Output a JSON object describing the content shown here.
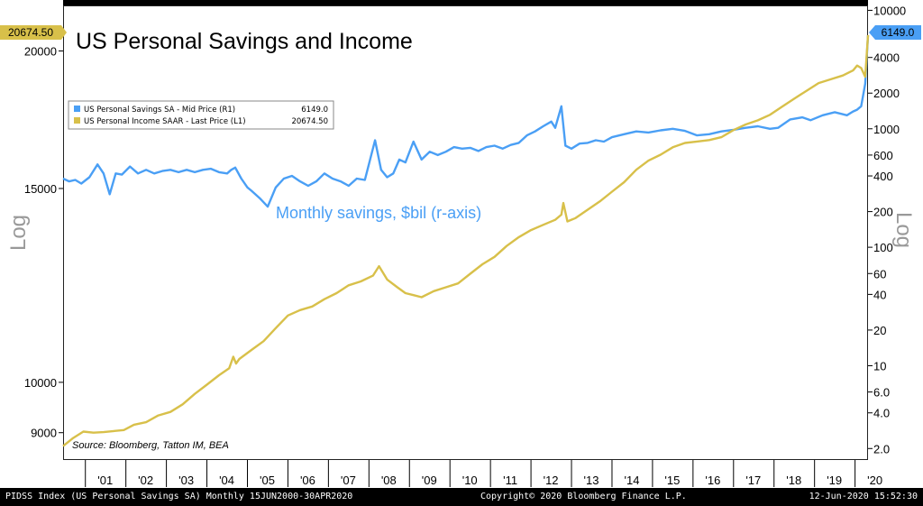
{
  "chart_data": {
    "type": "line",
    "title": "US Personal Savings and Income",
    "annotation": "Monthly savings, $bil (r-axis)",
    "source": "Source: Bloomberg, Tatton IM, BEA",
    "left_axis": {
      "label": "Log",
      "scale": "log",
      "range": [
        8500,
        22000
      ],
      "ticks": [
        "20000",
        "15000",
        "10000",
        "9000"
      ],
      "tick_values": [
        20000,
        15000,
        10000,
        9000
      ]
    },
    "right_axis": {
      "label": "Log",
      "scale": "log",
      "range": [
        1.6,
        11000
      ],
      "ticks": [
        "10000",
        "4000",
        "2000",
        "1000",
        "600",
        "400",
        "200",
        "100",
        "60",
        "40",
        "20",
        "10",
        "6.0",
        "4.0",
        "2.0"
      ],
      "tick_values": [
        10000,
        4000,
        2000,
        1000,
        600,
        400,
        200,
        100,
        60,
        40,
        20,
        10,
        6,
        4,
        2
      ]
    },
    "x_range": [
      2000.45,
      2020.32
    ],
    "x_ticks": [
      "'01",
      "'02",
      "'03",
      "'04",
      "'05",
      "'06",
      "'07",
      "'08",
      "'09",
      "'10",
      "'11",
      "'12",
      "'13",
      "'14",
      "'15",
      "'16",
      "'17",
      "'18",
      "'19",
      "'20"
    ],
    "x_tick_values": [
      2001,
      2002,
      2003,
      2004,
      2005,
      2006,
      2007,
      2008,
      2009,
      2010,
      2011,
      2012,
      2013,
      2014,
      2015,
      2016,
      2017,
      2018,
      2019,
      2020
    ],
    "grid": false,
    "legend_position": "top-left",
    "series": [
      {
        "name": "US Personal Savings SA - Mid Price (R1)",
        "last_value": "6149.0",
        "axis": "right",
        "color": "#4a9ff5",
        "x": [
          2000.45,
          2000.6,
          2000.75,
          2000.9,
          2001.1,
          2001.3,
          2001.45,
          2001.6,
          2001.75,
          2001.9,
          2002.1,
          2002.3,
          2002.5,
          2002.7,
          2002.9,
          2003.1,
          2003.3,
          2003.5,
          2003.7,
          2003.9,
          2004.1,
          2004.3,
          2004.5,
          2004.6,
          2004.7,
          2004.85,
          2005.0,
          2005.1,
          2005.3,
          2005.5,
          2005.7,
          2005.9,
          2006.1,
          2006.3,
          2006.5,
          2006.7,
          2006.9,
          2007.1,
          2007.3,
          2007.5,
          2007.7,
          2007.9,
          2008.15,
          2008.3,
          2008.45,
          2008.6,
          2008.75,
          2008.9,
          2009.1,
          2009.3,
          2009.5,
          2009.7,
          2009.9,
          2010.1,
          2010.3,
          2010.5,
          2010.7,
          2010.9,
          2011.1,
          2011.3,
          2011.5,
          2011.7,
          2011.9,
          2012.1,
          2012.3,
          2012.5,
          2012.6,
          2012.75,
          2012.85,
          2013.0,
          2013.2,
          2013.4,
          2013.6,
          2013.8,
          2014.0,
          2014.3,
          2014.6,
          2014.9,
          2015.2,
          2015.5,
          2015.8,
          2016.1,
          2016.4,
          2016.7,
          2017.0,
          2017.3,
          2017.6,
          2017.9,
          2018.1,
          2018.4,
          2018.7,
          2018.9,
          2019.2,
          2019.5,
          2019.8,
          2019.95,
          2020.05,
          2020.15,
          2020.25,
          2020.32
        ],
        "values": [
          380,
          360,
          370,
          345,
          390,
          500,
          420,
          280,
          420,
          410,
          480,
          420,
          450,
          420,
          440,
          450,
          430,
          450,
          430,
          450,
          460,
          430,
          420,
          450,
          470,
          380,
          320,
          300,
          260,
          220,
          320,
          380,
          400,
          360,
          330,
          360,
          420,
          380,
          360,
          330,
          380,
          370,
          800,
          450,
          390,
          420,
          550,
          520,
          780,
          550,
          640,
          600,
          640,
          700,
          680,
          690,
          650,
          700,
          720,
          680,
          730,
          760,
          880,
          950,
          1050,
          1150,
          1020,
          1550,
          720,
          680,
          750,
          760,
          800,
          780,
          850,
          900,
          950,
          930,
          970,
          1000,
          960,
          880,
          900,
          950,
          980,
          1020,
          1050,
          1000,
          1020,
          1200,
          1250,
          1180,
          1300,
          1380,
          1300,
          1400,
          1450,
          1550,
          2400,
          6149
        ]
      },
      {
        "name": "US Personal Income SAAR - Last Price (L1)",
        "last_value": "20674.50",
        "axis": "left",
        "color": "#d8c04a",
        "x": [
          2000.45,
          2000.7,
          2000.95,
          2001.2,
          2001.45,
          2001.7,
          2001.95,
          2002.2,
          2002.5,
          2002.8,
          2003.1,
          2003.4,
          2003.7,
          2004.0,
          2004.3,
          2004.55,
          2004.65,
          2004.72,
          2004.8,
          2005.1,
          2005.4,
          2005.7,
          2006.0,
          2006.3,
          2006.6,
          2006.9,
          2007.2,
          2007.5,
          2007.8,
          2008.1,
          2008.25,
          2008.45,
          2008.7,
          2008.9,
          2009.1,
          2009.3,
          2009.6,
          2009.9,
          2010.2,
          2010.5,
          2010.8,
          2011.1,
          2011.4,
          2011.7,
          2012.0,
          2012.3,
          2012.6,
          2012.75,
          2012.8,
          2012.9,
          2013.1,
          2013.4,
          2013.7,
          2014.0,
          2014.3,
          2014.6,
          2014.9,
          2015.2,
          2015.5,
          2015.8,
          2016.1,
          2016.4,
          2016.7,
          2017.0,
          2017.3,
          2017.6,
          2017.9,
          2018.2,
          2018.5,
          2018.8,
          2019.1,
          2019.4,
          2019.7,
          2019.95,
          2020.05,
          2020.15,
          2020.25,
          2020.32
        ],
        "values": [
          8750,
          8900,
          9020,
          9000,
          9010,
          9030,
          9050,
          9150,
          9200,
          9330,
          9400,
          9550,
          9760,
          9950,
          10150,
          10300,
          10550,
          10400,
          10500,
          10700,
          10900,
          11200,
          11500,
          11630,
          11720,
          11900,
          12050,
          12250,
          12350,
          12500,
          12750,
          12400,
          12200,
          12050,
          12000,
          11950,
          12100,
          12200,
          12300,
          12550,
          12800,
          13000,
          13300,
          13550,
          13750,
          13900,
          14050,
          14200,
          14550,
          14000,
          14100,
          14350,
          14600,
          14900,
          15200,
          15600,
          15900,
          16100,
          16350,
          16500,
          16550,
          16600,
          16700,
          16950,
          17150,
          17300,
          17500,
          17800,
          18100,
          18400,
          18700,
          18850,
          19000,
          19200,
          19400,
          19300,
          18950,
          20674.5
        ]
      }
    ]
  }
}
